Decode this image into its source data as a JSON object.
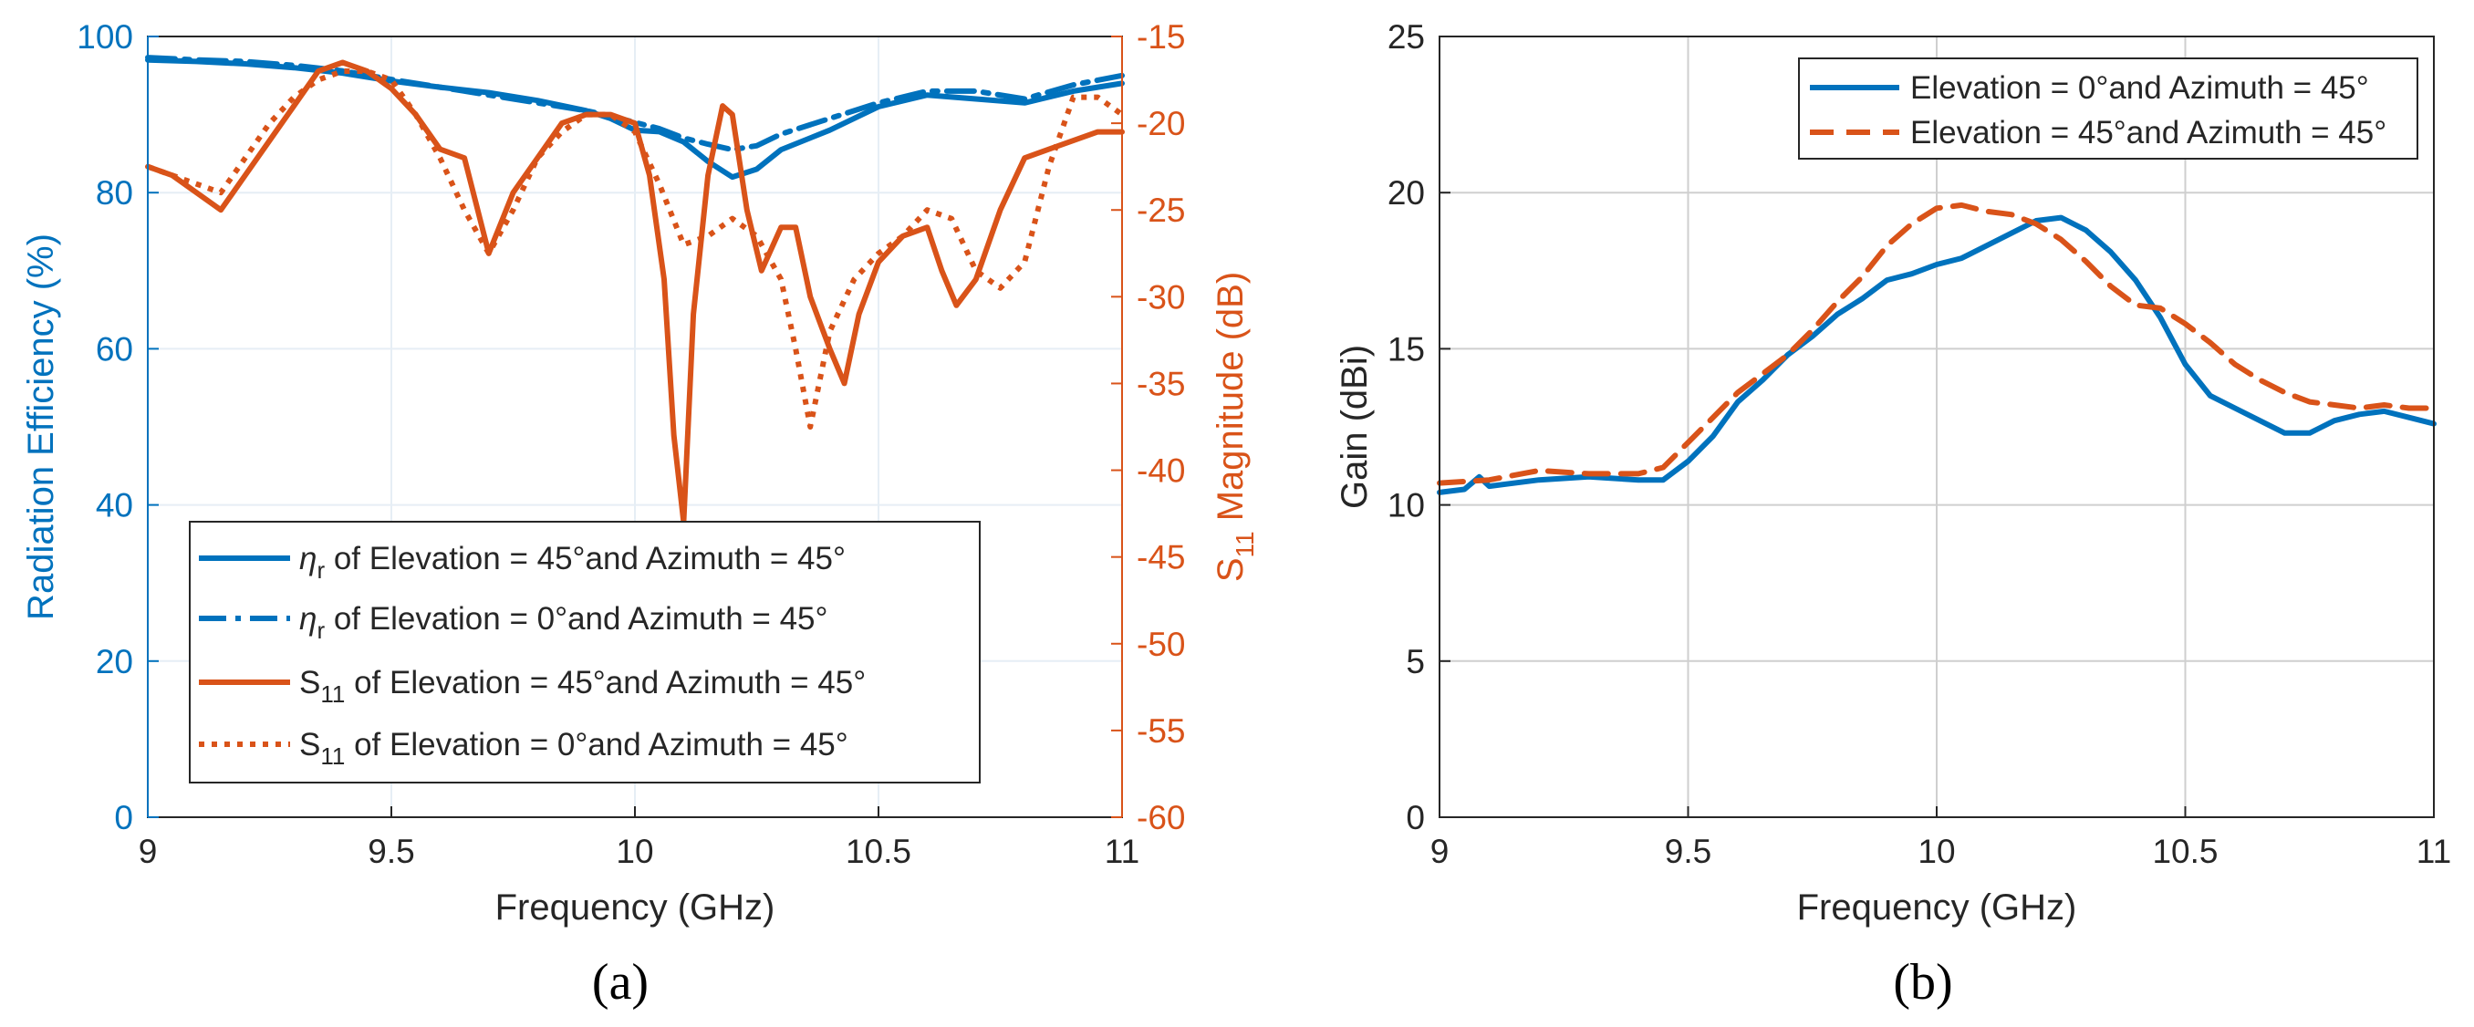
{
  "colors": {
    "blue": "#0072BD",
    "orange": "#D95319",
    "tick_blue": "#0072BD",
    "tick_orange": "#D95319",
    "grid": "#d9d9d9"
  },
  "panels": {
    "a": "(a)",
    "b": "(b)"
  },
  "chart_data": [
    {
      "id": "a",
      "type": "line",
      "xlabel": "Frequency (GHz)",
      "ylabel": "Radiation Efficiency (%)",
      "y2label": "S11 Magnitude (dB)",
      "y2label_parts": {
        "main": "S",
        "sub": "11",
        "rest": " Magnitude (dB)"
      },
      "xlim": [
        9,
        11
      ],
      "ylim": [
        0,
        100
      ],
      "y2lim": [
        -60,
        -15
      ],
      "xticks": [
        "9",
        "9.5",
        "10",
        "10.5",
        "11"
      ],
      "yticks": [
        "0",
        "20",
        "40",
        "60",
        "80",
        "100"
      ],
      "y2ticks": [
        "-60",
        "-55",
        "-50",
        "-45",
        "-40",
        "-35",
        "-30",
        "-25",
        "-20",
        "-15"
      ],
      "legend": [
        {
          "prefix": "η",
          "sub": "r",
          "text": " of Elevation = 45°and Azimuth = 45°"
        },
        {
          "prefix": "η",
          "sub": "r",
          "text": " of Elevation = 0°and Azimuth = 45°"
        },
        {
          "prefix": "S",
          "sub": "11",
          "text": " of Elevation = 45°and Azimuth = 45°"
        },
        {
          "prefix": "S",
          "sub": "11",
          "text": "  of Elevation = 0°and Azimuth = 45°"
        }
      ],
      "series": [
        {
          "name": "eta_r of Elevation = 45° and Azimuth = 45°",
          "axis": "left",
          "style": "solid",
          "color": "blue",
          "x": [
            9,
            9.1,
            9.2,
            9.3,
            9.4,
            9.5,
            9.6,
            9.7,
            9.8,
            9.9,
            9.95,
            10,
            10.05,
            10.1,
            10.15,
            10.2,
            10.25,
            10.3,
            10.4,
            10.5,
            10.6,
            10.7,
            10.8,
            10.9,
            11
          ],
          "y": [
            97,
            96.8,
            96.5,
            96,
            95.3,
            94.3,
            93.5,
            92.8,
            91.8,
            90.5,
            89.5,
            88,
            87.8,
            86.5,
            84,
            82,
            83,
            85.5,
            88,
            91,
            92.5,
            92,
            91.5,
            93,
            94
          ]
        },
        {
          "name": "eta_r of Elevation = 0° and Azimuth = 45°",
          "axis": "left",
          "style": "dashdot",
          "color": "blue",
          "x": [
            9,
            9.1,
            9.2,
            9.3,
            9.4,
            9.5,
            9.6,
            9.7,
            9.8,
            9.9,
            9.95,
            10,
            10.05,
            10.1,
            10.15,
            10.2,
            10.25,
            10.3,
            10.4,
            10.5,
            10.6,
            10.7,
            10.8,
            10.9,
            11
          ],
          "y": [
            97.3,
            97,
            96.8,
            96.3,
            95.6,
            94.5,
            93.5,
            92.5,
            91.5,
            90.5,
            89.8,
            89,
            88.2,
            87,
            86.2,
            85.5,
            86,
            87.5,
            89.5,
            91.5,
            93,
            93,
            92,
            93.8,
            95
          ]
        },
        {
          "name": "S11 of Elevation = 45° and Azimuth = 45°",
          "axis": "right",
          "style": "solid",
          "color": "orange",
          "x": [
            9,
            9.05,
            9.1,
            9.15,
            9.2,
            9.25,
            9.3,
            9.35,
            9.4,
            9.45,
            9.5,
            9.55,
            9.6,
            9.65,
            9.7,
            9.75,
            9.8,
            9.85,
            9.9,
            9.95,
            10,
            10.03,
            10.06,
            10.08,
            10.1,
            10.12,
            10.15,
            10.18,
            10.2,
            10.23,
            10.26,
            10.3,
            10.33,
            10.36,
            10.4,
            10.43,
            10.46,
            10.5,
            10.55,
            10.6,
            10.63,
            10.66,
            10.7,
            10.75,
            10.8,
            10.85,
            10.9,
            10.95,
            11
          ],
          "y": [
            -22.5,
            -23,
            -24,
            -25,
            -23,
            -21,
            -19,
            -17,
            -16.5,
            -17,
            -18,
            -19.5,
            -21.5,
            -22,
            -27.5,
            -24,
            -22,
            -20,
            -19.5,
            -19.5,
            -20,
            -23,
            -29,
            -38,
            -43,
            -31,
            -23,
            -19,
            -19.5,
            -25,
            -28.5,
            -26,
            -26,
            -30,
            -33,
            -35,
            -31,
            -28,
            -26.5,
            -26,
            -28.5,
            -30.5,
            -29,
            -25,
            -22,
            -21.5,
            -21,
            -20.5,
            -20.5
          ]
        },
        {
          "name": "S11 of Elevation = 0° and Azimuth = 45°",
          "axis": "right",
          "style": "dotted",
          "color": "orange",
          "x": [
            9,
            9.05,
            9.1,
            9.15,
            9.2,
            9.25,
            9.3,
            9.35,
            9.4,
            9.45,
            9.5,
            9.55,
            9.6,
            9.65,
            9.7,
            9.75,
            9.8,
            9.85,
            9.9,
            9.95,
            10,
            10.05,
            10.1,
            10.15,
            10.2,
            10.25,
            10.3,
            10.33,
            10.36,
            10.4,
            10.45,
            10.5,
            10.55,
            10.6,
            10.65,
            10.7,
            10.75,
            10.8,
            10.85,
            10.9,
            10.95,
            11
          ],
          "y": [
            -22.5,
            -23,
            -23.5,
            -24,
            -22,
            -20,
            -18.5,
            -17.5,
            -17,
            -17,
            -17.5,
            -19.5,
            -22,
            -25,
            -27.5,
            -25,
            -22,
            -20.5,
            -19.5,
            -19.5,
            -20.5,
            -23.5,
            -27,
            -26.5,
            -25.5,
            -26.5,
            -29,
            -33,
            -37.5,
            -32,
            -29,
            -27.5,
            -26.5,
            -25,
            -25.5,
            -28.5,
            -29.5,
            -28,
            -22.5,
            -18.5,
            -18.5,
            -19.5
          ]
        }
      ]
    },
    {
      "id": "b",
      "type": "line",
      "xlabel": "Frequency (GHz)",
      "ylabel": "Gain (dBi)",
      "xlim": [
        9,
        11
      ],
      "ylim": [
        0,
        25
      ],
      "xticks": [
        "9",
        "9.5",
        "10",
        "10.5",
        "11"
      ],
      "yticks": [
        "0",
        "5",
        "10",
        "15",
        "20",
        "25"
      ],
      "grid": true,
      "legend": [
        "Elevation = 0°and Azimuth = 45°",
        "Elevation = 45°and Azimuth = 45°"
      ],
      "series": [
        {
          "name": "Elevation = 0°and Azimuth = 45°",
          "style": "solid",
          "color": "blue",
          "x": [
            9,
            9.05,
            9.08,
            9.1,
            9.2,
            9.3,
            9.4,
            9.45,
            9.5,
            9.55,
            9.6,
            9.65,
            9.7,
            9.75,
            9.8,
            9.85,
            9.9,
            9.95,
            10,
            10.05,
            10.1,
            10.15,
            10.2,
            10.25,
            10.3,
            10.35,
            10.4,
            10.45,
            10.5,
            10.55,
            10.6,
            10.65,
            10.7,
            10.75,
            10.8,
            10.85,
            10.9,
            10.95,
            11
          ],
          "y": [
            10.4,
            10.5,
            10.9,
            10.6,
            10.8,
            10.9,
            10.8,
            10.8,
            11.4,
            12.2,
            13.3,
            14,
            14.8,
            15.4,
            16.1,
            16.6,
            17.2,
            17.4,
            17.7,
            17.9,
            18.3,
            18.7,
            19.1,
            19.2,
            18.8,
            18.1,
            17.2,
            16,
            14.5,
            13.5,
            13.1,
            12.7,
            12.3,
            12.3,
            12.7,
            12.9,
            13,
            12.8,
            12.6
          ]
        },
        {
          "name": "Elevation = 45°and Azimuth = 45°",
          "style": "dashed",
          "color": "orange",
          "x": [
            9,
            9.1,
            9.2,
            9.3,
            9.4,
            9.45,
            9.5,
            9.55,
            9.6,
            9.65,
            9.7,
            9.75,
            9.8,
            9.85,
            9.9,
            9.95,
            10,
            10.05,
            10.1,
            10.15,
            10.2,
            10.25,
            10.3,
            10.35,
            10.4,
            10.45,
            10.5,
            10.55,
            10.6,
            10.65,
            10.7,
            10.75,
            10.8,
            10.85,
            10.9,
            10.95,
            11
          ],
          "y": [
            10.7,
            10.8,
            11.1,
            11,
            11,
            11.2,
            12,
            12.8,
            13.6,
            14.2,
            14.8,
            15.6,
            16.5,
            17.3,
            18.3,
            19,
            19.5,
            19.6,
            19.4,
            19.3,
            19,
            18.5,
            17.8,
            17,
            16.4,
            16.3,
            15.8,
            15.2,
            14.5,
            14,
            13.6,
            13.3,
            13.2,
            13.1,
            13.2,
            13.1,
            13.1
          ]
        }
      ]
    }
  ]
}
